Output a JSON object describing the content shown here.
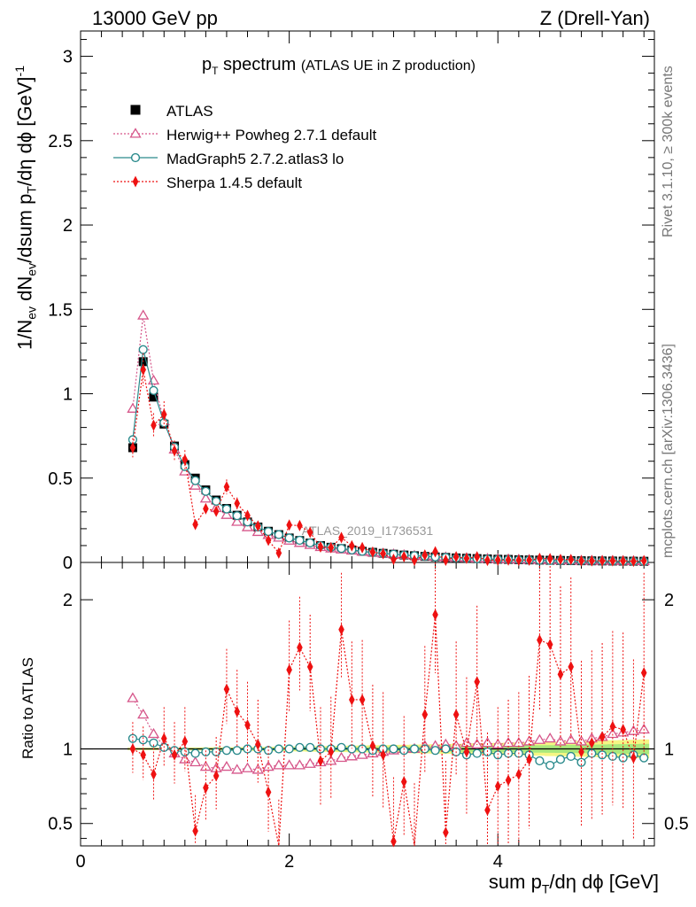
{
  "header": {
    "left": "13000 GeV pp",
    "right": "Z (Drell-Yan)"
  },
  "side": {
    "rivet": "Rivet 3.1.10, ≥ 300k events",
    "site": "mcplots.cern.ch [arXiv:1306.3436]"
  },
  "chart_data": {
    "type": "scatter",
    "title": "pT spectrum",
    "title_parts": {
      "main": "p",
      "sub": "T",
      "rest": " spectrum",
      "note": "(ATLAS UE in Z production)"
    },
    "watermark": "ATLAS_2019_I1736531",
    "xlabel": "sum pT/dη dϕ [GeV]",
    "xlabel_parts": {
      "a": "sum p",
      "sub": "T",
      "b": "/dη dϕ [GeV]"
    },
    "ylabel": "1/Nev dNev/dsum pT/dη dϕ [GeV]^-1",
    "ylabel_parts": {
      "a": "1/N",
      "s1": "ev",
      "b": " dN",
      "s2": "ev",
      "c": "/dsum p",
      "s3": "T",
      "d": "/dη dϕ  [GeV]",
      "sup": "-1"
    },
    "ratio_ylabel": "Ratio to ATLAS",
    "xlim": [
      0,
      5.5
    ],
    "ylim": [
      0,
      3.15
    ],
    "ratio_ylim": [
      0.35,
      2.25
    ],
    "x_ticks": [
      "0",
      "2",
      "4"
    ],
    "y_ticks": [
      "0",
      "0.5",
      "1",
      "1.5",
      "2",
      "2.5",
      "3"
    ],
    "ratio_ticks": [
      "0.5",
      "1",
      "2"
    ],
    "x": [
      0.5,
      0.6,
      0.7,
      0.8,
      0.9,
      1.0,
      1.1,
      1.2,
      1.3,
      1.4,
      1.5,
      1.6,
      1.7,
      1.8,
      1.9,
      2.0,
      2.1,
      2.2,
      2.3,
      2.4,
      2.5,
      2.6,
      2.7,
      2.8,
      2.9,
      3.0,
      3.1,
      3.2,
      3.3,
      3.4,
      3.5,
      3.6,
      3.7,
      3.8,
      3.9,
      4.0,
      4.1,
      4.2,
      4.3,
      4.4,
      4.5,
      4.6,
      4.7,
      4.8,
      4.9,
      5.0,
      5.1,
      5.2,
      5.3,
      5.4
    ],
    "series": [
      {
        "name": "ATLAS",
        "color": "#000000",
        "marker": "square",
        "values": [
          0.68,
          1.19,
          0.98,
          0.82,
          0.69,
          0.58,
          0.5,
          0.43,
          0.37,
          0.32,
          0.28,
          0.24,
          0.21,
          0.185,
          0.165,
          0.145,
          0.13,
          0.115,
          0.1,
          0.09,
          0.082,
          0.074,
          0.066,
          0.06,
          0.054,
          0.049,
          0.044,
          0.04,
          0.036,
          0.033,
          0.03,
          0.027,
          0.025,
          0.023,
          0.021,
          0.019,
          0.018,
          0.016,
          0.015,
          0.014,
          0.013,
          0.012,
          0.011,
          0.01,
          0.0095,
          0.009,
          0.0085,
          0.008,
          0.0075,
          0.007
        ]
      },
      {
        "name": "Herwig++ Powheg 2.7.1 default",
        "color": "#d6568a",
        "marker": "triangle",
        "ratio": [
          1.34,
          1.23,
          1.1,
          1.02,
          0.97,
          0.93,
          0.91,
          0.88,
          0.87,
          0.88,
          0.86,
          0.87,
          0.86,
          0.88,
          0.89,
          0.89,
          0.89,
          0.9,
          0.91,
          0.92,
          0.94,
          0.95,
          0.96,
          0.97,
          0.98,
          0.99,
          1.0,
          1.0,
          1.02,
          1.02,
          1.03,
          1.02,
          1.04,
          1.03,
          1.04,
          1.03,
          1.04,
          1.04,
          1.05,
          1.06,
          1.07,
          1.05,
          1.06,
          1.05,
          1.07,
          1.08,
          1.1,
          1.11,
          1.12,
          1.13
        ]
      },
      {
        "name": "MadGraph5 2.7.2.atlas3 lo",
        "color": "#2a8a8c",
        "marker": "circle",
        "ratio": [
          1.07,
          1.06,
          1.04,
          1.01,
          0.99,
          0.98,
          0.97,
          0.98,
          0.98,
          0.99,
          0.99,
          1.0,
          1.0,
          0.99,
          1.0,
          1.0,
          1.01,
          1.01,
          1.0,
          1.0,
          1.01,
          1.0,
          1.0,
          0.99,
          1.0,
          1.0,
          0.99,
          1.0,
          1.0,
          0.99,
          1.0,
          0.98,
          0.96,
          0.97,
          0.98,
          0.96,
          0.97,
          0.97,
          0.96,
          0.92,
          0.89,
          0.93,
          0.95,
          0.91,
          0.97,
          0.96,
          0.95,
          0.94,
          0.96,
          0.94
        ]
      },
      {
        "name": "Sherpa 1.4.5 default",
        "color": "#ee1111",
        "marker": "diamond",
        "ratio": [
          1.0,
          0.96,
          0.83,
          1.07,
          0.96,
          1.05,
          0.45,
          0.74,
          0.82,
          1.4,
          1.25,
          1.16,
          1.03,
          0.71,
          0.34,
          1.53,
          1.68,
          1.55,
          0.92,
          0.98,
          1.8,
          1.33,
          1.33,
          1.02,
          0.96,
          0.38,
          0.78,
          0.32,
          1.23,
          1.9,
          0.44,
          1.23,
          0.98,
          1.45,
          0.59,
          0.75,
          0.79,
          0.83,
          0.93,
          1.73,
          1.7,
          1.5,
          1.55,
          0.98,
          1.04,
          1.08,
          1.15,
          1.13,
          0.94,
          1.51
        ]
      }
    ]
  }
}
